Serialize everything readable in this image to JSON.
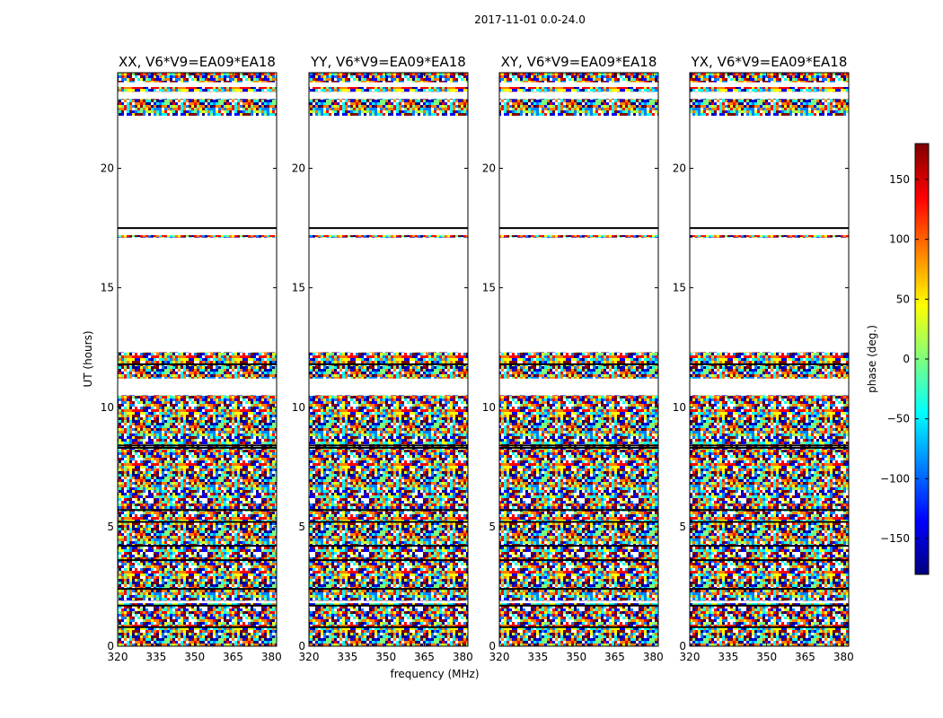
{
  "figure": {
    "suptitle": "2017-11-01 0.0-24.0",
    "xlabel": "frequency (MHz)",
    "ylabel": "UT (hours)"
  },
  "chart_data": {
    "type": "heatmap",
    "title": "2017-11-01 0.0-24.0",
    "xlabel": "frequency (MHz)",
    "ylabel": "UT (hours)",
    "xlim": [
      320,
      382
    ],
    "ylim": [
      0,
      24
    ],
    "xticks": [
      "320",
      "335",
      "350",
      "365",
      "380"
    ],
    "yticks": [
      "0",
      "5",
      "10",
      "15",
      "20"
    ],
    "colormap": "jet",
    "colorbar": {
      "label": "phase (deg.)",
      "range": [
        -180,
        180
      ],
      "ticks": [
        "150",
        "100",
        "50",
        "0",
        "−50",
        "−100",
        "−150"
      ],
      "colors": [
        "#00007f",
        "#0000ff",
        "#007fff",
        "#00ffff",
        "#7fff7f",
        "#ffff00",
        "#ff7f00",
        "#ff0000",
        "#7f0000"
      ]
    },
    "panels": [
      {
        "title": "XX, V6*V9=EA09*EA18"
      },
      {
        "title": "YY, V6*V9=EA09*EA18"
      },
      {
        "title": "XY, V6*V9=EA09*EA18"
      },
      {
        "title": "YX, V6*V9=EA09*EA18"
      }
    ],
    "data_bands_ut": [
      [
        0,
        0.3
      ],
      [
        0.3,
        1.8
      ],
      [
        1.9,
        5.9
      ],
      [
        5.9,
        8.0
      ],
      [
        8.0,
        8.6
      ],
      [
        8.6,
        10.5
      ],
      [
        11.2,
        12.3
      ],
      [
        17.1,
        17.2
      ],
      [
        22.2,
        22.9
      ],
      [
        23.2,
        23.4
      ],
      [
        23.6,
        24.0
      ]
    ],
    "blank_ranges_ut": [
      [
        1.8,
        1.9
      ],
      [
        10.5,
        11.2
      ],
      [
        12.3,
        17.1
      ],
      [
        17.5,
        22.2
      ]
    ],
    "flagged_lines_ut": [
      0.8,
      1.7,
      2.4,
      3.6,
      4.2,
      5.2,
      5.7,
      8.3,
      8.4,
      11.8,
      17.5
    ]
  }
}
